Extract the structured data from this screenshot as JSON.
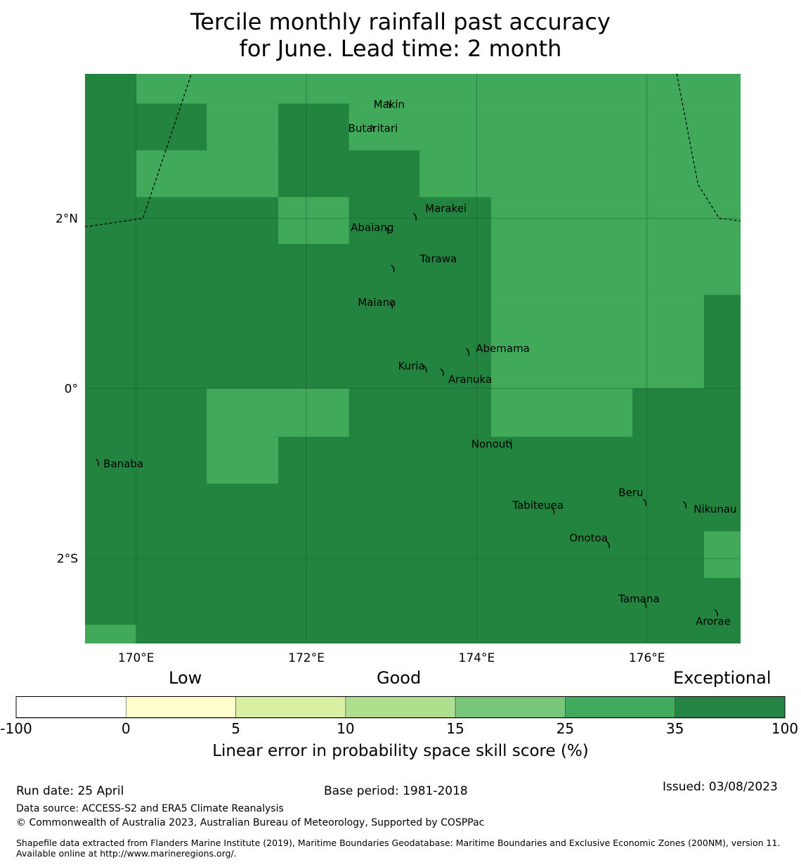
{
  "title_line1": "Tercile monthly rainfall past accuracy",
  "title_line2": "for June. Lead time: 2 month",
  "map": {
    "lon_range": [
      169.4,
      177.1
    ],
    "lat_range": [
      -3.0,
      3.7
    ],
    "lon_ticks": [
      {
        "value": 170,
        "label": "170°E"
      },
      {
        "value": 172,
        "label": "172°E"
      },
      {
        "value": 174,
        "label": "174°E"
      },
      {
        "value": 176,
        "label": "176°E"
      }
    ],
    "lat_ticks": [
      {
        "value": 2,
        "label": "2°N"
      },
      {
        "value": 0,
        "label": "0°"
      },
      {
        "value": -2,
        "label": "2°S"
      }
    ],
    "colors": {
      "exceptional": "#23843f",
      "very_good": "#40a95a"
    },
    "light_cells": [
      {
        "lon": [
          170.0,
          177.1
        ],
        "lat": [
          3.35,
          3.7
        ]
      },
      {
        "lon": [
          170.83,
          171.67
        ],
        "lat": [
          2.8,
          3.35
        ]
      },
      {
        "lon": [
          172.5,
          177.1
        ],
        "lat": [
          2.8,
          3.35
        ]
      },
      {
        "lon": [
          170.0,
          171.67
        ],
        "lat": [
          2.25,
          2.8
        ]
      },
      {
        "lon": [
          173.33,
          177.1
        ],
        "lat": [
          2.25,
          2.8
        ]
      },
      {
        "lon": [
          171.67,
          172.5
        ],
        "lat": [
          1.7,
          2.25
        ]
      },
      {
        "lon": [
          174.17,
          177.1
        ],
        "lat": [
          1.1,
          2.25
        ]
      },
      {
        "lon": [
          174.17,
          176.67
        ],
        "lat": [
          0.0,
          1.1
        ]
      },
      {
        "lon": [
          170.83,
          172.5
        ],
        "lat": [
          -0.57,
          0.0
        ]
      },
      {
        "lon": [
          174.17,
          175.83
        ],
        "lat": [
          -0.57,
          0.0
        ]
      },
      {
        "lon": [
          170.83,
          171.67
        ],
        "lat": [
          -1.12,
          -0.57
        ]
      },
      {
        "lon": [
          176.67,
          177.1
        ],
        "lat": [
          -2.23,
          -1.68
        ]
      },
      {
        "lon": [
          169.4,
          170.0
        ],
        "lat": [
          -3.0,
          -2.78
        ]
      }
    ],
    "boundaries": [
      [
        [
          169.4,
          1.9
        ],
        [
          170.08,
          2.0
        ],
        [
          170.65,
          3.7
        ]
      ],
      [
        [
          176.35,
          3.7
        ],
        [
          176.6,
          2.4
        ],
        [
          176.85,
          2.0
        ],
        [
          177.1,
          1.97
        ]
      ]
    ],
    "places": [
      {
        "name": "Makin",
        "lon": 172.97,
        "lat": 3.33,
        "dx": -22,
        "dy": -8
      },
      {
        "name": "Butaritari",
        "lon": 172.78,
        "lat": 3.05,
        "dx": -35,
        "dy": -8
      },
      {
        "name": "Marakei",
        "lon": 173.28,
        "lat": 2.01,
        "dx": 14,
        "dy": -20
      },
      {
        "name": "Abaiang",
        "lon": 172.95,
        "lat": 1.85,
        "dx": -52,
        "dy": -12
      },
      {
        "name": "Tarawa",
        "lon": 173.02,
        "lat": 1.4,
        "dx": 38,
        "dy": -22
      },
      {
        "name": "Maiana",
        "lon": 173.0,
        "lat": 0.97,
        "dx": -48,
        "dy": -12
      },
      {
        "name": "Abemama",
        "lon": 173.9,
        "lat": 0.42,
        "dx": 11,
        "dy": -13
      },
      {
        "name": "Kuria",
        "lon": 173.4,
        "lat": 0.22,
        "dx": -39,
        "dy": -12
      },
      {
        "name": "Aranuka",
        "lon": 173.6,
        "lat": 0.18,
        "dx": 8,
        "dy": 2
      },
      {
        "name": "Nonouti",
        "lon": 174.4,
        "lat": -0.68,
        "dx": -56,
        "dy": -10
      },
      {
        "name": "Banaba",
        "lon": 169.55,
        "lat": -0.88,
        "dx": 8,
        "dy": -6
      },
      {
        "name": "Beru",
        "lon": 175.98,
        "lat": -1.35,
        "dx": -38,
        "dy": -22
      },
      {
        "name": "Tabiteuea",
        "lon": 174.9,
        "lat": -1.45,
        "dx": -58,
        "dy": -16
      },
      {
        "name": "Nikunau",
        "lon": 176.45,
        "lat": -1.38,
        "dx": 12,
        "dy": -2
      },
      {
        "name": "Onotoa",
        "lon": 175.55,
        "lat": -1.85,
        "dx": -56,
        "dy": -18
      },
      {
        "name": "Tamana",
        "lon": 175.98,
        "lat": -2.55,
        "dx": -38,
        "dy": -16
      },
      {
        "name": "Arorae",
        "lon": 176.82,
        "lat": -2.65,
        "dx": -30,
        "dy": 4
      }
    ]
  },
  "colorbar": {
    "head_low": "Low",
    "head_good": "Good",
    "head_exceptional": "Exceptional",
    "segments": [
      "#ffffff",
      "#fffecc",
      "#d9efa3",
      "#addf8e",
      "#78c679",
      "#41ab5d",
      "#238443"
    ],
    "ticks": [
      "-100",
      "0",
      "5",
      "10",
      "15",
      "25",
      "35",
      "100"
    ],
    "label": "Linear error in probability space skill score (%)"
  },
  "footer": {
    "run_date": "Run date: 25 April",
    "base_period": "Base period: 1981-2018",
    "issued": "Issued: 03/08/2023",
    "data_source": "Data source: ACCESS-S2 and ERA5 Climate Reanalysis",
    "copyright": "© Commonwealth of Australia 2023, Australian Bureau of Meteorology, Supported by COSPPac",
    "shapefile": "Shapefile data extracted from Flanders Marine Institute (2019), Maritime Boundaries Geodatabase: Maritime Boundaries and Exclusive Economic Zones (200NM), version 11. Available online at http://www.marineregions.org/."
  }
}
